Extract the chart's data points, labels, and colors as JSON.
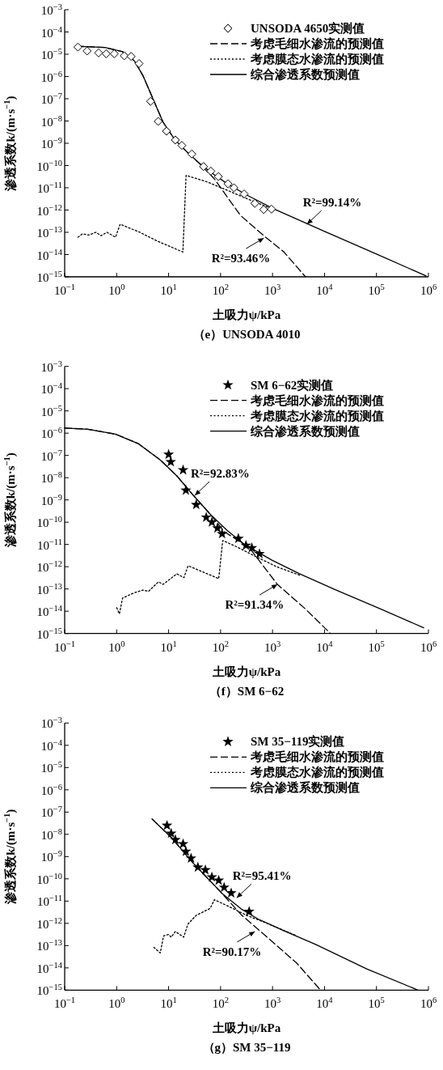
{
  "chart_data": [
    {
      "type": "line",
      "title": "（e）UNSODA 4010",
      "xlabel": "土吸力ψ/kPa",
      "ylabel": "渗透系数k/(m·s$^{−1}$)",
      "log": "xy",
      "legend": "top right",
      "xlim": [
        0.1,
        1000000
      ],
      "ylim": [
        1e-15,
        0.001
      ],
      "xticks": [
        {
          "value": 0.1,
          "label": "10$^{−1}$"
        },
        {
          "value": 1,
          "label": "10$^{0}$"
        },
        {
          "value": 10,
          "label": "10$^{1}$"
        },
        {
          "value": 100,
          "label": "10$^{2}$"
        },
        {
          "value": 1000,
          "label": "10$^{3}$"
        },
        {
          "value": 10000,
          "label": "10$^{4}$"
        },
        {
          "value": 100000,
          "label": "10$^{5}$"
        },
        {
          "value": 1000000,
          "label": "10$^{6}$"
        }
      ],
      "yticks": [
        {
          "value": 1e-15,
          "label": "10$^{−15}$"
        },
        {
          "value": 1e-14,
          "label": "10$^{−14}$"
        },
        {
          "value": 1e-13,
          "label": "10$^{−13}$"
        },
        {
          "value": 1e-12,
          "label": "10$^{−12}$"
        },
        {
          "value": 1e-11,
          "label": "10$^{−11}$"
        },
        {
          "value": 1e-10,
          "label": "10$^{−10}$"
        },
        {
          "value": 1e-09,
          "label": "10$^{−9}$"
        },
        {
          "value": 1e-08,
          "label": "10$^{−8}$"
        },
        {
          "value": 1e-07,
          "label": "10$^{−7}$"
        },
        {
          "value": 1e-06,
          "label": "10$^{−6}$"
        },
        {
          "value": 1e-05,
          "label": "10$^{−5}$"
        },
        {
          "value": 0.0001,
          "label": "10$^{−4}$"
        },
        {
          "value": 0.001,
          "label": "10$^{−3}$"
        }
      ],
      "series": [
        {
          "name": "UNSODA 4650实测值",
          "type": "scatter",
          "marker": "diamond",
          "color": "#000000",
          "x": [
            0.18,
            0.27,
            0.45,
            0.63,
            0.9,
            1.4,
            1.9,
            2.7,
            4.5,
            6.3,
            9.1,
            13.5,
            18,
            28,
            47,
            65,
            91,
            139,
            181,
            284,
            457,
            676,
            955
          ],
          "values": [
            2.1e-05,
            1.4e-05,
            1.15e-05,
            1.05e-05,
            1.05e-05,
            8.5e-06,
            8e-06,
            3.8e-06,
            7.6e-08,
            9.6e-09,
            3.5e-09,
            1.4e-09,
            8e-10,
            3.3e-10,
            9e-11,
            5.6e-11,
            3.2e-11,
            1.5e-11,
            1e-11,
            5.3e-12,
            2e-12,
            1.05e-12,
            1.1e-12
          ]
        },
        {
          "name": "考虑毛细水渗流的预测值",
          "type": "line",
          "line_style": "dashed",
          "color": "#000000",
          "x": [
            0.17,
            0.6,
            1.3,
            2.2,
            3.2,
            5,
            7.8,
            13,
            22,
            36,
            76,
            240,
            680,
            1660,
            4300
          ],
          "values": [
            2.3e-05,
            2e-05,
            1.3e-05,
            5e-06,
            1.1e-06,
            1e-07,
            9e-09,
            1.5e-09,
            4.3e-10,
            1.5e-10,
            2.5e-11,
            5.8e-13,
            7e-14,
            1.3e-14,
            1e-15
          ]
        },
        {
          "name": "考虑膜态水渗流的预测值",
          "type": "line",
          "line_style": "dotted",
          "color": "#000000",
          "x": [
            0.18,
            0.22,
            0.29,
            0.4,
            0.5,
            0.65,
            0.95,
            1.17,
            2.8,
            6.1,
            18.8,
            21.7,
            53,
            130,
            350,
            1000
          ],
          "values": [
            6e-14,
            8.5e-14,
            7.5e-14,
            1e-13,
            7e-14,
            1e-13,
            6e-14,
            2.3e-13,
            1e-13,
            4e-14,
            1.3e-14,
            3.6e-11,
            1.9e-11,
            8e-12,
            3e-12,
            1.1e-12
          ]
        },
        {
          "name": "综合渗透系数预测值",
          "type": "line",
          "line_style": "solid",
          "color": "#000000",
          "x": [
            0.17,
            0.6,
            1.3,
            2.2,
            3.2,
            5,
            7.8,
            13,
            22,
            36,
            68,
            130,
            320,
            1000,
            10000,
            96000,
            900000
          ],
          "values": [
            2.3e-05,
            2e-05,
            1.3e-05,
            5e-06,
            1.1e-06,
            1e-07,
            9e-09,
            1.5e-09,
            4.3e-10,
            1.5e-10,
            4.6e-11,
            1.6e-11,
            4.7e-12,
            1.2e-12,
            1.1e-13,
            1.1e-14,
            1.1e-15
          ]
        }
      ],
      "annotations": [
        {
          "text": "R²=99.14%",
          "x": 4600,
          "y": 2.3e-13
        },
        {
          "text": "R²=93.46%",
          "x": 680,
          "y": 5.5e-14
        }
      ]
    },
    {
      "type": "line",
      "title": "（f）SM 6−62",
      "xlabel": "土吸力ψ/kPa",
      "ylabel": "渗透系数k/(m·s$^{−1}$)",
      "log": "xy",
      "legend": "top right",
      "xlim": [
        0.1,
        1000000
      ],
      "ylim": [
        1e-15,
        0.001
      ],
      "xticks": [
        {
          "value": 0.1,
          "label": "10$^{−1}$"
        },
        {
          "value": 1,
          "label": "10$^{0}$"
        },
        {
          "value": 10,
          "label": "10$^{1}$"
        },
        {
          "value": 100,
          "label": "10$^{2}$"
        },
        {
          "value": 1000,
          "label": "10$^{3}$"
        },
        {
          "value": 10000,
          "label": "10$^{4}$"
        },
        {
          "value": 100000,
          "label": "10$^{5}$"
        },
        {
          "value": 1000000,
          "label": "10$^{6}$"
        }
      ],
      "yticks": [
        {
          "value": 1e-15,
          "label": "10$^{−15}$"
        },
        {
          "value": 1e-14,
          "label": "10$^{−14}$"
        },
        {
          "value": 1e-13,
          "label": "10$^{−13}$"
        },
        {
          "value": 1e-12,
          "label": "10$^{−12}$"
        },
        {
          "value": 1e-11,
          "label": "10$^{−11}$"
        },
        {
          "value": 1e-10,
          "label": "10$^{−10}$"
        },
        {
          "value": 1e-09,
          "label": "10$^{−9}$"
        },
        {
          "value": 1e-08,
          "label": "10$^{−8}$"
        },
        {
          "value": 1e-07,
          "label": "10$^{−7}$"
        },
        {
          "value": 1e-06,
          "label": "10$^{−6}$"
        },
        {
          "value": 1e-05,
          "label": "10$^{−5}$"
        },
        {
          "value": 0.0001,
          "label": "10$^{−4}$"
        },
        {
          "value": 0.001,
          "label": "10$^{−3}$"
        }
      ],
      "series": [
        {
          "name": "SM 6−62实测值",
          "type": "scatter",
          "marker": "star",
          "color": "#000000",
          "x": [
            10,
            11,
            19,
            21.5,
            34,
            53,
            68,
            87,
            107,
            220,
            308,
            400,
            560
          ],
          "values": [
            1.1e-07,
            5.1e-08,
            2.2e-08,
            2.7e-09,
            6.1e-10,
            1.65e-10,
            1e-10,
            5.4e-11,
            3e-11,
            1.85e-11,
            9e-12,
            7e-12,
            3.8e-12
          ]
        },
        {
          "name": "考虑毛细水渗流的预测值",
          "type": "line",
          "line_style": "dashed",
          "color": "#000000",
          "x": [
            0.1,
            0.28,
            0.95,
            2.6,
            6.9,
            14.4,
            30,
            63,
            117,
            360,
            1240,
            4300,
            13000
          ],
          "values": [
            1.7e-06,
            1.5e-06,
            9e-07,
            3.4e-07,
            6.3e-08,
            1.2e-08,
            1.6e-09,
            2.3e-10,
            3.8e-11,
            7e-12,
            1.6e-13,
            1.26e-14,
            1e-15
          ]
        },
        {
          "name": "考虑膜态水渗流的预测值",
          "type": "line",
          "line_style": "dotted",
          "color": "#000000",
          "x": [
            1.0,
            1.13,
            1.3,
            2.2,
            3.2,
            4.1,
            6.4,
            7.8,
            14.4,
            19.7,
            23.7,
            92,
            110,
            192,
            455,
            1230,
            3300
          ],
          "values": [
            1.45e-14,
            7.6e-15,
            3.9e-14,
            6.8e-14,
            8.9e-14,
            7.8e-14,
            2.1e-13,
            1.6e-13,
            4.8e-13,
            3.2e-13,
            1.1e-12,
            2.9e-13,
            1.5e-11,
            8.4e-12,
            3e-12,
            9.7e-13,
            4.2e-13
          ]
        },
        {
          "name": "综合渗透系数预测值",
          "type": "line",
          "line_style": "solid",
          "color": "#000000",
          "x": [
            0.1,
            0.28,
            0.95,
            2.6,
            6.9,
            14.4,
            30,
            63,
            133,
            280,
            960,
            3300,
            16500,
            120000,
            810000
          ],
          "values": [
            1.7e-06,
            1.5e-06,
            9e-07,
            3.4e-07,
            6.3e-08,
            1.2e-08,
            1.6e-09,
            2.3e-10,
            4.3e-11,
            1.05e-11,
            2e-12,
            4.8e-13,
            9e-14,
            1.26e-14,
            1.8e-15
          ]
        }
      ],
      "annotations": [
        {
          "text": "R²=92.83%",
          "x": 32,
          "y": 1.6e-09
        },
        {
          "text": "R²=91.34%",
          "x": 1240,
          "y": 1.6e-13
        }
      ]
    },
    {
      "type": "line",
      "title": "（g）SM 35−119",
      "xlabel": "土吸力ψ/kPa",
      "ylabel": "渗透系数k/(m·s$^{−1}$)",
      "log": "xy",
      "legend": "top right",
      "xlim": [
        0.1,
        1000000
      ],
      "ylim": [
        1e-15,
        0.001
      ],
      "xticks": [
        {
          "value": 0.1,
          "label": "10$^{−1}$"
        },
        {
          "value": 1,
          "label": "10$^{0}$"
        },
        {
          "value": 10,
          "label": "10$^{1}$"
        },
        {
          "value": 100,
          "label": "10$^{2}$"
        },
        {
          "value": 1000,
          "label": "10$^{3}$"
        },
        {
          "value": 10000,
          "label": "10$^{4}$"
        },
        {
          "value": 100000,
          "label": "10$^{5}$"
        },
        {
          "value": 1000000,
          "label": "10$^{6}$"
        }
      ],
      "yticks": [
        {
          "value": 1e-15,
          "label": "10$^{−15}$"
        },
        {
          "value": 1e-14,
          "label": "10$^{−14}$"
        },
        {
          "value": 1e-13,
          "label": "10$^{−13}$"
        },
        {
          "value": 1e-12,
          "label": "10$^{−12}$"
        },
        {
          "value": 1e-11,
          "label": "10$^{−11}$"
        },
        {
          "value": 1e-10,
          "label": "10$^{−10}$"
        },
        {
          "value": 1e-09,
          "label": "10$^{−9}$"
        },
        {
          "value": 1e-08,
          "label": "10$^{−8}$"
        },
        {
          "value": 1e-07,
          "label": "10$^{−7}$"
        },
        {
          "value": 1e-06,
          "label": "10$^{−6}$"
        },
        {
          "value": 1e-05,
          "label": "10$^{−5}$"
        },
        {
          "value": 0.0001,
          "label": "10$^{−4}$"
        },
        {
          "value": 0.001,
          "label": "10$^{−3}$"
        }
      ],
      "series": [
        {
          "name": "SM 35−119实测值",
          "type": "scatter",
          "marker": "star",
          "color": "#000000",
          "x": [
            9.3,
            11.2,
            13.5,
            19,
            21.5,
            27,
            36.6,
            51,
            68,
            92,
            117,
            160,
            355
          ],
          "values": [
            2.5e-08,
            1.1e-08,
            5.7e-09,
            3.7e-09,
            1.7e-09,
            8.4e-10,
            3.3e-10,
            2.5e-10,
            1.2e-10,
            8.5e-11,
            4.1e-11,
            2.3e-11,
            3.4e-12
          ]
        },
        {
          "name": "考虑毛细水渗流的预测值",
          "type": "line",
          "line_style": "dashed",
          "color": "#000000",
          "x": [
            4.8,
            11.2,
            30,
            105,
            247,
            960,
            2900,
            8400
          ],
          "values": [
            4.9e-08,
            7.3e-09,
            5e-10,
            2.3e-11,
            2.5e-12,
            1.6e-13,
            1.66e-14,
            1e-15
          ]
        },
        {
          "name": "考虑膜态水渗流的预测值",
          "type": "line",
          "line_style": "dotted",
          "color": "#000000",
          "x": [
            5.2,
            6.9,
            8,
            10,
            11.2,
            13.5,
            19.5,
            23.5,
            34,
            63,
            76,
            132,
            316,
            850,
            2750
          ],
          "values": [
            8.3e-14,
            4.7e-14,
            2.7e-13,
            3.2e-13,
            2.4e-13,
            4.3e-13,
            2.4e-13,
            9.3e-13,
            2.3e-12,
            4.7e-12,
            1.15e-11,
            6.3e-12,
            2.3e-12,
            9.3e-13,
            2.9e-13
          ]
        },
        {
          "name": "综合渗透系数预测值",
          "type": "line",
          "line_style": "solid",
          "color": "#000000",
          "x": [
            4.8,
            11.2,
            30,
            105,
            247,
            520,
            1580,
            6900,
            65000,
            630000
          ],
          "values": [
            4.9e-08,
            7.3e-09,
            5e-10,
            2.3e-11,
            4.5e-12,
            1.6e-12,
            4.9e-13,
            1.1e-13,
            9e-15,
            1e-15
          ]
        }
      ],
      "annotations": [
        {
          "text": "R²=95.41%",
          "x": 204,
          "y": 1.4e-11
        },
        {
          "text": "R²=90.17%",
          "x": 457,
          "y": 4.3e-13
        }
      ]
    }
  ]
}
